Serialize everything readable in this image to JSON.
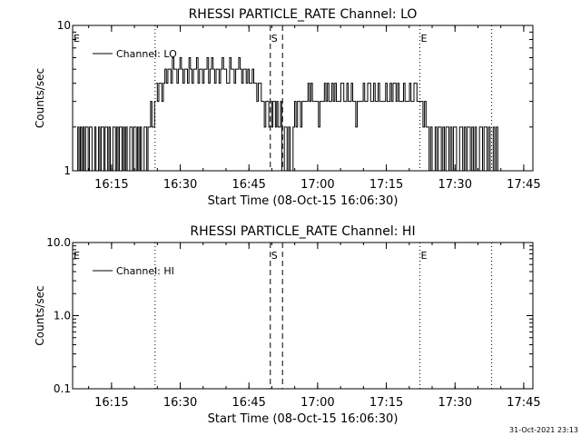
{
  "footer_timestamp": "31-Oct-2021 23:13",
  "chart_data": [
    {
      "type": "line",
      "title": "RHESSI PARTICLE_RATE Channel: LO",
      "xlabel": "Start Time (08-Oct-15 16:06:30)",
      "ylabel": "Counts/sec",
      "yscale": "log",
      "xlim": [
        "16:06:30",
        "17:47:00"
      ],
      "ylim": [
        1,
        10
      ],
      "x_ticks": [
        "16:15",
        "16:30",
        "16:45",
        "17:00",
        "17:15",
        "17:30",
        "17:45"
      ],
      "y_ticks": [
        "1",
        "10"
      ],
      "legend": {
        "entries": [
          "Channel: LO"
        ],
        "position": "top-left"
      },
      "markers": [
        {
          "label": "E",
          "time": "16:06:30",
          "style": "dotted"
        },
        {
          "label": "",
          "time": "16:24:30",
          "style": "dotted"
        },
        {
          "label": "S",
          "time": "16:49:40",
          "style": "dashed"
        },
        {
          "label": "",
          "time": "16:52:20",
          "style": "dashed"
        },
        {
          "label": "E",
          "time": "17:22:20",
          "style": "dotted"
        },
        {
          "label": "",
          "time": "17:38:00",
          "style": "dotted"
        }
      ],
      "series": [
        {
          "name": "Channel: LO",
          "segments": [
            {
              "start": "16:07:20",
              "end": "16:24:40",
              "values": [
                1,
                2,
                1,
                2,
                1,
                2,
                1,
                2,
                2,
                1,
                2,
                2,
                1,
                1,
                2,
                1,
                1,
                2,
                1,
                2,
                2,
                1,
                2,
                2,
                1,
                2,
                1,
                1,
                2,
                2,
                1,
                2,
                1,
                2,
                2,
                1,
                2,
                1,
                2,
                1,
                1,
                2,
                2,
                1,
                2,
                2,
                1,
                2,
                1,
                2,
                1,
                1,
                2,
                2,
                1,
                2,
                2,
                3,
                2,
                2,
                3
              ]
            },
            {
              "start": "16:24:40",
              "end": "16:49:40",
              "values": [
                4,
                3,
                4,
                4,
                3,
                4,
                5,
                4,
                5,
                5,
                4,
                6,
                5,
                5,
                4,
                5,
                6,
                5,
                4,
                5,
                5,
                4,
                6,
                5,
                4,
                5,
                5,
                6,
                4,
                5,
                5,
                4,
                5,
                5,
                6,
                4,
                5,
                6,
                5,
                4,
                5,
                5,
                4,
                5,
                6,
                5,
                5,
                4,
                4,
                6,
                5,
                5,
                4,
                5,
                5,
                6,
                5,
                4,
                5,
                5,
                4,
                5,
                4,
                4,
                5,
                4,
                4,
                3,
                4,
                4,
                3,
                3,
                2,
                3,
                3,
                2
              ]
            },
            {
              "start": "16:49:40",
              "end": "16:53:00",
              "values": [
                3,
                2,
                3,
                3,
                2,
                3,
                2,
                2,
                3,
                1,
                1,
                2
              ]
            },
            {
              "start": "16:53:00",
              "end": "17:22:20",
              "values": [
                2,
                1,
                2,
                1,
                1,
                2,
                3,
                2,
                3,
                3,
                2,
                3,
                3,
                3,
                3,
                4,
                3,
                4,
                3,
                3,
                3,
                3,
                2,
                3,
                3,
                3,
                4,
                3,
                4,
                3,
                3,
                4,
                3,
                4,
                3,
                3,
                3,
                4,
                4,
                3,
                3,
                4,
                3,
                3,
                4,
                3,
                3,
                2,
                3,
                3,
                3,
                3,
                4,
                3,
                3,
                4,
                4,
                3,
                3,
                4,
                3,
                3,
                4,
                3,
                3,
                3,
                3,
                4,
                3,
                3,
                4,
                3,
                4,
                4,
                3,
                4,
                3,
                3,
                3,
                4,
                3,
                3,
                3,
                4,
                3,
                3,
                4,
                4,
                3,
                3
              ]
            },
            {
              "start": "17:22:20",
              "end": "17:38:00",
              "values": [
                3,
                3,
                2,
                3,
                2,
                2,
                1,
                2,
                1,
                1,
                2,
                1,
                2,
                2,
                1,
                2,
                1,
                2,
                2,
                1,
                2,
                1,
                2,
                2,
                1,
                1,
                2,
                2,
                1,
                2,
                1,
                2,
                2,
                1,
                2,
                1,
                2,
                1,
                1,
                2,
                2,
                1,
                2,
                2,
                1,
                2,
                1
              ]
            },
            {
              "start": "17:38:00",
              "end": "17:40:00",
              "values": [
                1,
                2,
                1,
                2,
                1,
                1
              ]
            }
          ]
        }
      ]
    },
    {
      "type": "line",
      "title": "RHESSI PARTICLE_RATE Channel: HI",
      "xlabel": "Start Time (08-Oct-15 16:06:30)",
      "ylabel": "Counts/sec",
      "yscale": "log",
      "xlim": [
        "16:06:30",
        "17:47:00"
      ],
      "ylim": [
        0.1,
        10
      ],
      "x_ticks": [
        "16:15",
        "16:30",
        "16:45",
        "17:00",
        "17:15",
        "17:30",
        "17:45"
      ],
      "y_ticks": [
        "0.1",
        "1.0",
        "10.0"
      ],
      "legend": {
        "entries": [
          "Channel: HI"
        ],
        "position": "top-left"
      },
      "markers": [
        {
          "label": "E",
          "time": "16:06:30",
          "style": "dotted"
        },
        {
          "label": "",
          "time": "16:24:30",
          "style": "dotted"
        },
        {
          "label": "S",
          "time": "16:49:40",
          "style": "dashed"
        },
        {
          "label": "",
          "time": "16:52:20",
          "style": "dashed"
        },
        {
          "label": "E",
          "time": "17:22:20",
          "style": "dotted"
        },
        {
          "label": "",
          "time": "17:38:00",
          "style": "dotted"
        }
      ],
      "series": [
        {
          "name": "Channel: HI",
          "segments": []
        }
      ]
    }
  ]
}
